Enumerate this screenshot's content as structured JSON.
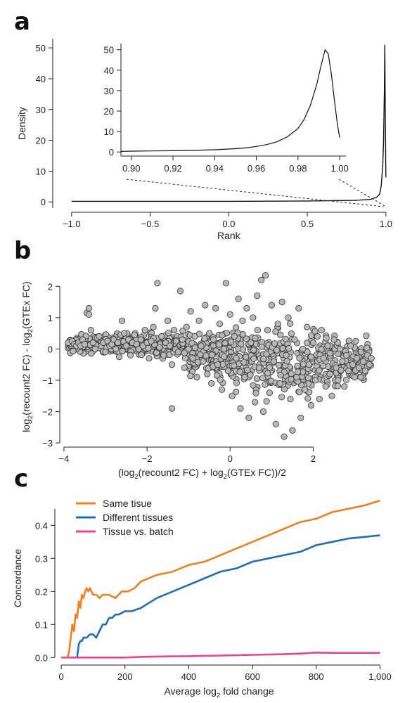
{
  "panels": {
    "a": {
      "letter": "a"
    },
    "b": {
      "letter": "b"
    },
    "c": {
      "letter": "c"
    }
  },
  "chart_data": [
    {
      "panel": "a",
      "type": "line",
      "xlabel": "Rank",
      "ylabel": "Density",
      "xlim": [
        -1.0,
        1.0
      ],
      "ylim": [
        0,
        52
      ],
      "xticks": [
        "−1.0",
        "−0.5",
        "0.0",
        "0.5",
        "1.0"
      ],
      "xtick_values": [
        -1.0,
        -0.5,
        0.0,
        0.5,
        1.0
      ],
      "yticks": [
        "0",
        "10",
        "20",
        "30",
        "40",
        "50"
      ],
      "ytick_values": [
        0,
        10,
        20,
        30,
        40,
        50
      ],
      "series": [
        {
          "x": [
            -1.0,
            -0.5,
            0.0,
            0.5,
            0.8,
            0.9,
            0.94,
            0.96,
            0.97,
            0.98,
            0.985,
            0.99,
            0.993,
            0.996,
            1.0
          ],
          "y": [
            0.2,
            0.2,
            0.2,
            0.3,
            0.5,
            0.8,
            1.5,
            2.5,
            5,
            12,
            20,
            35,
            51,
            30,
            8
          ]
        }
      ],
      "inset": {
        "xlim": [
          0.895,
          1.003
        ],
        "ylim": [
          0,
          52
        ],
        "xticks": [
          "0.90",
          "0.92",
          "0.94",
          "0.96",
          "0.98",
          "1.00"
        ],
        "xtick_values": [
          0.9,
          0.92,
          0.94,
          0.96,
          0.98,
          1.0
        ],
        "yticks": [
          "0",
          "10",
          "20",
          "30",
          "40",
          "50"
        ],
        "ytick_values": [
          0,
          10,
          20,
          30,
          40,
          50
        ],
        "series": [
          {
            "x": [
              0.895,
              0.9,
              0.91,
              0.92,
              0.93,
              0.94,
              0.95,
              0.955,
              0.96,
              0.965,
              0.97,
              0.975,
              0.98,
              0.983,
              0.986,
              0.989,
              0.991,
              0.993,
              0.9945,
              0.996,
              0.9975,
              0.999,
              1.0
            ],
            "y": [
              0.3,
              0.4,
              0.5,
              0.6,
              0.8,
              1.1,
              1.6,
              2.0,
              2.7,
              3.6,
              5.0,
              7.5,
              11.5,
              16,
              23,
              33,
              42,
              50,
              48,
              38,
              25,
              13,
              7
            ]
          }
        ]
      }
    },
    {
      "panel": "b",
      "type": "scatter",
      "xlabel_parts": [
        "(log",
        "2",
        "(recount2 FC) + log",
        "2",
        "(GTEx FC))/2"
      ],
      "ylabel_parts": [
        "log",
        "2",
        "(recount2 FC) - log",
        "2",
        "(GTEx FC)"
      ],
      "xlim": [
        -4.1,
        3.6
      ],
      "ylim": [
        -3.0,
        2.5
      ],
      "xticks": [
        "−4",
        "−2",
        "0",
        "2"
      ],
      "xtick_values": [
        -4,
        -2,
        0,
        2
      ],
      "yticks": [
        "−3",
        "−2",
        "−1",
        "0",
        "1",
        "2"
      ],
      "ytick_values": [
        -3,
        -2,
        -1,
        0,
        1,
        2
      ],
      "points": [
        [
          -3.9,
          0.2
        ],
        [
          -3.8,
          0.25
        ],
        [
          -3.75,
          0.15
        ],
        [
          -3.7,
          0.1
        ],
        [
          -3.65,
          0.2
        ],
        [
          -3.6,
          0.1
        ],
        [
          -3.55,
          0.3
        ],
        [
          -3.5,
          0.15
        ],
        [
          -3.45,
          1.15
        ],
        [
          -3.4,
          1.3
        ],
        [
          -3.4,
          1.1
        ],
        [
          -3.35,
          0.6
        ],
        [
          -3.3,
          0.2
        ],
        [
          -3.25,
          0.0
        ],
        [
          -3.2,
          0.35
        ],
        [
          -3.15,
          0.4
        ],
        [
          -3.1,
          0.1
        ],
        [
          -3.05,
          0.2
        ],
        [
          -3.0,
          -0.1
        ],
        [
          -2.95,
          0.25
        ],
        [
          -2.9,
          0.1
        ],
        [
          -2.85,
          0.15
        ],
        [
          -2.8,
          0.3
        ],
        [
          -2.75,
          0.0
        ],
        [
          -2.7,
          0.2
        ],
        [
          -2.6,
          0.9
        ],
        [
          -2.55,
          0.5
        ],
        [
          -2.5,
          0.1
        ],
        [
          -2.45,
          0.3
        ],
        [
          -2.4,
          -0.2
        ],
        [
          -2.35,
          0.2
        ],
        [
          -2.3,
          0.45
        ],
        [
          -2.25,
          0.15
        ],
        [
          -2.2,
          0.0
        ],
        [
          -2.15,
          0.3
        ],
        [
          -2.1,
          0.1
        ],
        [
          -2.05,
          0.6
        ],
        [
          -2.0,
          0.2
        ],
        [
          -1.95,
          -0.3
        ],
        [
          -1.9,
          0.25
        ],
        [
          -1.85,
          0.7
        ],
        [
          -1.8,
          1.3
        ],
        [
          -1.75,
          2.1
        ],
        [
          -1.7,
          0.05
        ],
        [
          -1.65,
          0.4
        ],
        [
          -1.6,
          -0.2
        ],
        [
          -1.55,
          0.2
        ],
        [
          -1.5,
          0.9
        ],
        [
          -1.45,
          0.1
        ],
        [
          -1.4,
          -1.9
        ],
        [
          -1.4,
          -0.5
        ],
        [
          -1.35,
          0.6
        ],
        [
          -1.3,
          0.25
        ],
        [
          -1.25,
          -0.1
        ],
        [
          -1.2,
          1.85
        ],
        [
          -1.15,
          0.3
        ],
        [
          -1.1,
          -0.6
        ],
        [
          -1.05,
          0.7
        ],
        [
          -1.0,
          0.0
        ],
        [
          -0.95,
          1.2
        ],
        [
          -0.9,
          -0.3
        ],
        [
          -0.85,
          0.4
        ],
        [
          -0.8,
          -0.9
        ],
        [
          -0.75,
          0.9
        ],
        [
          -0.7,
          0.1
        ],
        [
          -0.65,
          -0.4
        ],
        [
          -0.6,
          1.4
        ],
        [
          -0.55,
          -0.8
        ],
        [
          -0.5,
          0.5
        ],
        [
          -0.45,
          -1.1
        ],
        [
          -0.4,
          0.3
        ],
        [
          -0.35,
          1.3
        ],
        [
          -0.3,
          -0.5
        ],
        [
          -0.25,
          0.8
        ],
        [
          -0.2,
          -1.3
        ],
        [
          -0.15,
          0.0
        ],
        [
          -0.1,
          2.1
        ],
        [
          -0.05,
          -0.7
        ],
        [
          0.0,
          1.1
        ],
        [
          0.05,
          -1.5
        ],
        [
          0.1,
          0.4
        ],
        [
          0.15,
          -0.3
        ],
        [
          0.2,
          1.6
        ],
        [
          0.25,
          -1.9
        ],
        [
          0.3,
          0.9
        ],
        [
          0.35,
          -0.9
        ],
        [
          0.4,
          1.3
        ],
        [
          0.45,
          -2.2
        ],
        [
          0.5,
          0.2
        ],
        [
          0.55,
          1.0
        ],
        [
          0.6,
          -1.7
        ],
        [
          0.65,
          1.7
        ],
        [
          0.7,
          -0.6
        ],
        [
          0.75,
          2.2
        ],
        [
          0.8,
          -2.0
        ],
        [
          0.85,
          2.35
        ],
        [
          0.9,
          0.6
        ],
        [
          0.95,
          -1.4
        ],
        [
          1.0,
          1.4
        ],
        [
          1.05,
          -0.4
        ],
        [
          1.1,
          -2.4
        ],
        [
          1.15,
          0.8
        ],
        [
          1.2,
          -1.1
        ],
        [
          1.25,
          1.5
        ],
        [
          1.3,
          -2.8
        ],
        [
          1.35,
          -0.2
        ],
        [
          1.4,
          1.0
        ],
        [
          1.45,
          -1.6
        ],
        [
          1.5,
          -2.6
        ],
        [
          1.55,
          0.3
        ],
        [
          1.6,
          -0.9
        ],
        [
          1.65,
          1.3
        ],
        [
          1.7,
          -2.2
        ],
        [
          1.75,
          0.0
        ],
        [
          1.8,
          -1.3
        ],
        [
          1.85,
          0.7
        ],
        [
          1.9,
          -0.5
        ],
        [
          1.95,
          -1.8
        ],
        [
          2.0,
          0.2
        ],
        [
          2.05,
          -1.0
        ],
        [
          2.1,
          0.4
        ],
        [
          2.15,
          -1.6
        ],
        [
          2.2,
          0.6
        ],
        [
          2.25,
          -0.3
        ],
        [
          2.3,
          -1.2
        ],
        [
          2.35,
          0.1
        ],
        [
          2.4,
          -0.8
        ],
        [
          2.45,
          -1.5
        ],
        [
          2.5,
          0.3
        ],
        [
          2.55,
          -0.6
        ],
        [
          2.6,
          -1.0
        ],
        [
          2.65,
          0.0
        ],
        [
          2.7,
          -0.4
        ],
        [
          2.75,
          -1.2
        ],
        [
          2.8,
          -0.2
        ],
        [
          2.85,
          -0.7
        ],
        [
          2.9,
          0.1
        ],
        [
          2.95,
          -0.5
        ],
        [
          3.0,
          -0.9
        ],
        [
          3.05,
          -0.3
        ],
        [
          3.1,
          -0.6
        ],
        [
          3.15,
          -0.1
        ],
        [
          3.2,
          -0.4
        ],
        [
          3.25,
          -0.7
        ],
        [
          3.3,
          -0.2
        ],
        [
          3.35,
          -0.5
        ],
        [
          3.4,
          -0.3
        ]
      ]
    },
    {
      "panel": "c",
      "type": "line",
      "xlabel_parts": [
        "Average log",
        "2",
        " fold change"
      ],
      "ylabel": "Concordance",
      "xlim": [
        -20,
        1010
      ],
      "ylim": [
        -0.01,
        0.49
      ],
      "xticks": [
        "0",
        "200",
        "400",
        "600",
        "800",
        "1,000"
      ],
      "xtick_values": [
        0,
        200,
        400,
        600,
        800,
        1000
      ],
      "yticks": [
        "0.0",
        "0.1",
        "0.2",
        "0.3",
        "0.4"
      ],
      "ytick_values": [
        0.0,
        0.1,
        0.2,
        0.3,
        0.4
      ],
      "legend": [
        {
          "name": "Same tisue",
          "color": "#f07f1e"
        },
        {
          "name": "Different tissues",
          "color": "#1f6eb4"
        },
        {
          "name": "Tissue vs. batch",
          "color": "#e8458e"
        }
      ],
      "series": [
        {
          "name": "Same tisue",
          "color": "#f07f1e",
          "x": [
            20,
            25,
            30,
            35,
            40,
            45,
            50,
            55,
            60,
            65,
            70,
            75,
            80,
            85,
            90,
            100,
            110,
            120,
            130,
            150,
            170,
            190,
            210,
            230,
            250,
            300,
            350,
            400,
            450,
            500,
            550,
            600,
            650,
            700,
            750,
            800,
            850,
            900,
            950,
            1000
          ],
          "y": [
            0.0,
            0.02,
            0.06,
            0.1,
            0.08,
            0.13,
            0.12,
            0.17,
            0.15,
            0.19,
            0.18,
            0.2,
            0.21,
            0.2,
            0.21,
            0.19,
            0.19,
            0.18,
            0.19,
            0.19,
            0.18,
            0.2,
            0.2,
            0.21,
            0.23,
            0.25,
            0.26,
            0.28,
            0.29,
            0.31,
            0.33,
            0.35,
            0.37,
            0.39,
            0.41,
            0.42,
            0.44,
            0.45,
            0.46,
            0.475
          ]
        },
        {
          "name": "Different tissues",
          "color": "#1f6eb4",
          "x": [
            50,
            55,
            60,
            65,
            70,
            80,
            90,
            100,
            110,
            120,
            130,
            140,
            150,
            160,
            170,
            180,
            200,
            220,
            250,
            300,
            350,
            400,
            450,
            500,
            550,
            600,
            650,
            700,
            750,
            800,
            850,
            900,
            950,
            1000
          ],
          "y": [
            0.0,
            0.04,
            0.05,
            0.05,
            0.06,
            0.06,
            0.07,
            0.07,
            0.06,
            0.08,
            0.1,
            0.1,
            0.12,
            0.12,
            0.13,
            0.13,
            0.14,
            0.14,
            0.15,
            0.18,
            0.2,
            0.22,
            0.24,
            0.26,
            0.27,
            0.29,
            0.3,
            0.31,
            0.32,
            0.34,
            0.35,
            0.36,
            0.365,
            0.37
          ]
        },
        {
          "name": "Tissue vs. batch",
          "color": "#e8458e",
          "x": [
            0,
            100,
            200,
            250,
            300,
            400,
            500,
            600,
            700,
            750,
            800,
            850,
            900,
            1000
          ],
          "y": [
            0.0,
            0.0,
            0.0,
            0.002,
            0.003,
            0.004,
            0.006,
            0.008,
            0.01,
            0.012,
            0.015,
            0.014,
            0.014,
            0.014
          ]
        }
      ]
    }
  ]
}
